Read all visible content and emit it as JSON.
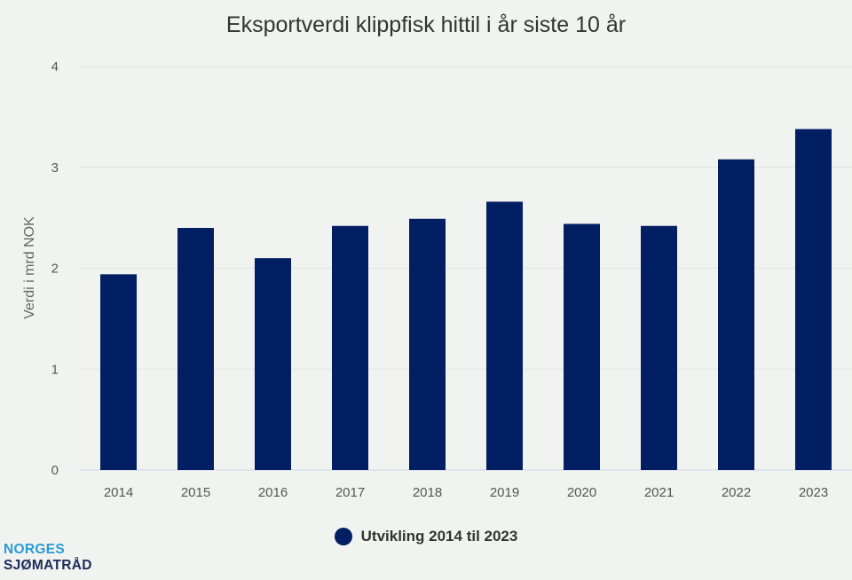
{
  "chart_data": {
    "type": "bar",
    "title": "Eksportverdi klippfisk hittil i år siste 10 år",
    "xlabel": "",
    "ylabel": "Verdi i mrd NOK",
    "ylim": [
      0,
      4
    ],
    "yticks": [
      "0",
      "1",
      "2",
      "3",
      "4"
    ],
    "grid": true,
    "legend_placement": "bottom",
    "categories": [
      "2014",
      "2015",
      "2016",
      "2017",
      "2018",
      "2019",
      "2020",
      "2021",
      "2022",
      "2023"
    ],
    "series": [
      {
        "name": "Utvikling 2014 til 2023",
        "color": "#031f63",
        "values": [
          1.94,
          2.4,
          2.1,
          2.42,
          2.49,
          2.66,
          2.44,
          2.42,
          3.08,
          3.38
        ]
      }
    ]
  },
  "logo": {
    "line1": "NORGES",
    "line2": "SJØMATRÅD"
  }
}
